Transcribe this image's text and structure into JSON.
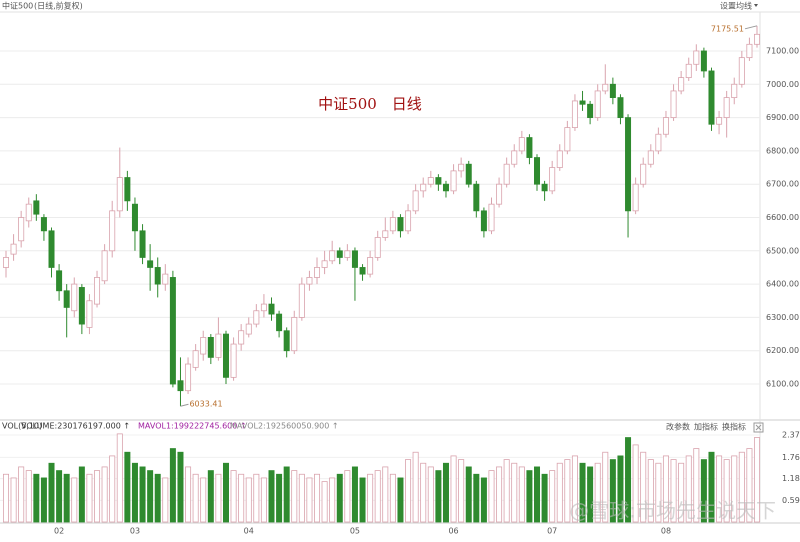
{
  "chart_data": {
    "type": "candlestick",
    "title": "中证500",
    "subtitle": "(日线,前复权)",
    "menu": "设置均线",
    "annotation": "中证500　日线",
    "up_color": "#d9a3ad",
    "down_color": "#2f8a2f",
    "ylim": [
      5998,
      7217
    ],
    "yticks": [
      {
        "value": 6100,
        "label": "6100.00"
      },
      {
        "value": 6200,
        "label": "6200.00"
      },
      {
        "value": 6300,
        "label": "6300.00"
      },
      {
        "value": 6400,
        "label": "6400.00"
      },
      {
        "value": 6500,
        "label": "6500.00"
      },
      {
        "value": 6600,
        "label": "6600.00"
      },
      {
        "value": 6700,
        "label": "6700.00"
      },
      {
        "value": 6800,
        "label": "6800.00"
      },
      {
        "value": 6900,
        "label": "6900.00"
      },
      {
        "value": 7000,
        "label": "7000.00"
      },
      {
        "value": 7100,
        "label": "7100.00"
      }
    ],
    "grid": true,
    "categories": [
      null,
      null,
      null,
      null,
      null,
      null,
      null,
      "02",
      null,
      null,
      null,
      null,
      null,
      null,
      null,
      null,
      null,
      "03",
      null,
      null,
      null,
      null,
      null,
      null,
      null,
      null,
      null,
      null,
      null,
      null,
      null,
      null,
      "04",
      null,
      null,
      null,
      null,
      null,
      null,
      null,
      null,
      null,
      null,
      null,
      null,
      null,
      "05",
      null,
      null,
      null,
      null,
      null,
      null,
      null,
      null,
      null,
      null,
      null,
      null,
      "06",
      null,
      null,
      null,
      null,
      null,
      null,
      null,
      null,
      null,
      null,
      null,
      null,
      "07",
      null,
      null,
      null,
      null,
      null,
      null,
      null,
      null,
      null,
      null,
      null,
      null,
      null,
      null,
      "08",
      null,
      null,
      null,
      null,
      null,
      null,
      null,
      null,
      null,
      null,
      null,
      null
    ],
    "ohlc": [
      [
        6450,
        6500,
        6420,
        6480
      ],
      [
        6490,
        6550,
        6470,
        6520
      ],
      [
        6530,
        6620,
        6510,
        6600
      ],
      [
        6590,
        6660,
        6570,
        6640
      ],
      [
        6650,
        6670,
        6590,
        6610
      ],
      [
        6600,
        6610,
        6530,
        6560
      ],
      [
        6560,
        6570,
        6420,
        6450
      ],
      [
        6440,
        6460,
        6350,
        6380
      ],
      [
        6380,
        6400,
        6240,
        6330
      ],
      [
        6320,
        6420,
        6300,
        6400
      ],
      [
        6390,
        6400,
        6250,
        6280
      ],
      [
        6270,
        6370,
        6250,
        6350
      ],
      [
        6340,
        6440,
        6330,
        6420
      ],
      [
        6410,
        6520,
        6400,
        6500
      ],
      [
        6500,
        6650,
        6480,
        6620
      ],
      [
        6620,
        6810,
        6600,
        6720
      ],
      [
        6720,
        6740,
        6620,
        6650
      ],
      [
        6640,
        6660,
        6500,
        6560
      ],
      [
        6560,
        6580,
        6460,
        6480
      ],
      [
        6470,
        6520,
        6380,
        6450
      ],
      [
        6450,
        6480,
        6360,
        6400
      ],
      [
        6400,
        6460,
        6380,
        6430
      ],
      [
        6420,
        6440,
        6090,
        6100
      ],
      [
        6110,
        6180,
        6033.41,
        6080
      ],
      [
        6080,
        6180,
        6070,
        6160
      ],
      [
        6150,
        6220,
        6140,
        6200
      ],
      [
        6190,
        6260,
        6170,
        6240
      ],
      [
        6240,
        6250,
        6160,
        6180
      ],
      [
        6180,
        6300,
        6170,
        6250
      ],
      [
        6250,
        6260,
        6100,
        6120
      ],
      [
        6120,
        6240,
        6110,
        6220
      ],
      [
        6220,
        6280,
        6200,
        6260
      ],
      [
        6250,
        6300,
        6240,
        6280
      ],
      [
        6280,
        6340,
        6270,
        6320
      ],
      [
        6320,
        6370,
        6300,
        6340
      ],
      [
        6340,
        6360,
        6290,
        6310
      ],
      [
        6310,
        6320,
        6240,
        6260
      ],
      [
        6260,
        6270,
        6180,
        6200
      ],
      [
        6200,
        6320,
        6190,
        6300
      ],
      [
        6300,
        6420,
        6290,
        6400
      ],
      [
        6400,
        6440,
        6380,
        6420
      ],
      [
        6420,
        6480,
        6400,
        6450
      ],
      [
        6450,
        6500,
        6430,
        6470
      ],
      [
        6470,
        6530,
        6460,
        6500
      ],
      [
        6500,
        6510,
        6460,
        6480
      ],
      [
        6480,
        6520,
        6470,
        6500
      ],
      [
        6500,
        6510,
        6350,
        6450
      ],
      [
        6450,
        6460,
        6410,
        6430
      ],
      [
        6430,
        6500,
        6420,
        6480
      ],
      [
        6480,
        6560,
        6470,
        6540
      ],
      [
        6540,
        6600,
        6530,
        6560
      ],
      [
        6560,
        6620,
        6550,
        6600
      ],
      [
        6600,
        6610,
        6540,
        6560
      ],
      [
        6560,
        6640,
        6550,
        6620
      ],
      [
        6620,
        6700,
        6610,
        6680
      ],
      [
        6680,
        6720,
        6660,
        6700
      ],
      [
        6700,
        6740,
        6690,
        6720
      ],
      [
        6720,
        6730,
        6680,
        6700
      ],
      [
        6700,
        6710,
        6660,
        6680
      ],
      [
        6680,
        6760,
        6670,
        6740
      ],
      [
        6740,
        6780,
        6720,
        6760
      ],
      [
        6760,
        6770,
        6690,
        6700
      ],
      [
        6700,
        6710,
        6600,
        6620
      ],
      [
        6620,
        6630,
        6540,
        6560
      ],
      [
        6560,
        6660,
        6550,
        6640
      ],
      [
        6640,
        6720,
        6630,
        6700
      ],
      [
        6700,
        6780,
        6690,
        6760
      ],
      [
        6760,
        6820,
        6750,
        6800
      ],
      [
        6800,
        6860,
        6790,
        6840
      ],
      [
        6840,
        6850,
        6760,
        6780
      ],
      [
        6780,
        6790,
        6680,
        6700
      ],
      [
        6700,
        6710,
        6650,
        6680
      ],
      [
        6680,
        6770,
        6670,
        6750
      ],
      [
        6750,
        6820,
        6740,
        6800
      ],
      [
        6800,
        6890,
        6790,
        6870
      ],
      [
        6870,
        6970,
        6860,
        6950
      ],
      [
        6950,
        6980,
        6920,
        6940
      ],
      [
        6940,
        6950,
        6880,
        6900
      ],
      [
        6900,
        7000,
        6890,
        6980
      ],
      [
        6980,
        7060,
        6970,
        7000
      ],
      [
        7000,
        7020,
        6940,
        6960
      ],
      [
        6960,
        6970,
        6880,
        6900
      ],
      [
        6900,
        6910,
        6540,
        6620
      ],
      [
        6620,
        6720,
        6610,
        6700
      ],
      [
        6700,
        6780,
        6690,
        6760
      ],
      [
        6760,
        6820,
        6750,
        6800
      ],
      [
        6800,
        6870,
        6790,
        6850
      ],
      [
        6850,
        6920,
        6840,
        6900
      ],
      [
        6900,
        7000,
        6890,
        6980
      ],
      [
        6980,
        7040,
        6970,
        7020
      ],
      [
        7020,
        7080,
        7010,
        7060
      ],
      [
        7060,
        7120,
        7040,
        7100
      ],
      [
        7100,
        7110,
        7020,
        7040
      ],
      [
        7040,
        7050,
        6860,
        6880
      ],
      [
        6880,
        6920,
        6850,
        6900
      ],
      [
        6900,
        6980,
        6840,
        6960
      ],
      [
        6960,
        7020,
        6940,
        7000
      ],
      [
        7000,
        7100,
        6990,
        7080
      ],
      [
        7080,
        7140,
        7070,
        7120
      ],
      [
        7120,
        7175.51,
        7110,
        7150
      ]
    ],
    "volume": [
      1.3,
      1.2,
      1.5,
      1.4,
      1.3,
      1.2,
      1.6,
      1.4,
      1.3,
      1.2,
      1.5,
      1.3,
      1.4,
      1.5,
      1.8,
      2.4,
      1.9,
      1.6,
      1.5,
      1.4,
      1.3,
      1.2,
      2.0,
      1.9,
      1.5,
      1.3,
      1.2,
      1.4,
      1.3,
      1.6,
      1.4,
      1.3,
      1.2,
      1.3,
      1.2,
      1.4,
      1.3,
      1.5,
      1.4,
      1.3,
      1.2,
      1.3,
      1.1,
      1.2,
      1.3,
      1.4,
      1.5,
      1.2,
      1.3,
      1.4,
      1.5,
      1.3,
      1.2,
      1.7,
      1.9,
      1.6,
      1.5,
      1.4,
      1.6,
      1.8,
      1.7,
      1.5,
      1.3,
      1.2,
      1.4,
      1.5,
      1.7,
      1.6,
      1.5,
      1.4,
      1.5,
      1.3,
      1.4,
      1.6,
      1.7,
      1.8,
      1.6,
      1.5,
      1.6,
      1.9,
      1.7,
      1.8,
      2.3,
      2.1,
      1.9,
      1.7,
      1.6,
      1.8,
      1.7,
      1.6,
      1.8,
      2.0,
      1.7,
      1.9,
      1.8,
      1.7,
      1.8,
      1.9,
      2.0,
      2.3
    ],
    "vlim": [
      0,
      2.56
    ],
    "vticks": [
      0.59,
      1.18,
      1.76,
      2.37
    ],
    "vol_legend": [
      "VOL(5,10)",
      "VOLUME:230176197.000 ↑",
      "MAVOL1:199222745.600 ↑",
      "MAVOL2:192560050.900 ↑"
    ],
    "vol_buttons": [
      "改参数",
      "加指标",
      "换指标"
    ],
    "watermark": "@雪球:市场先生说天下"
  }
}
